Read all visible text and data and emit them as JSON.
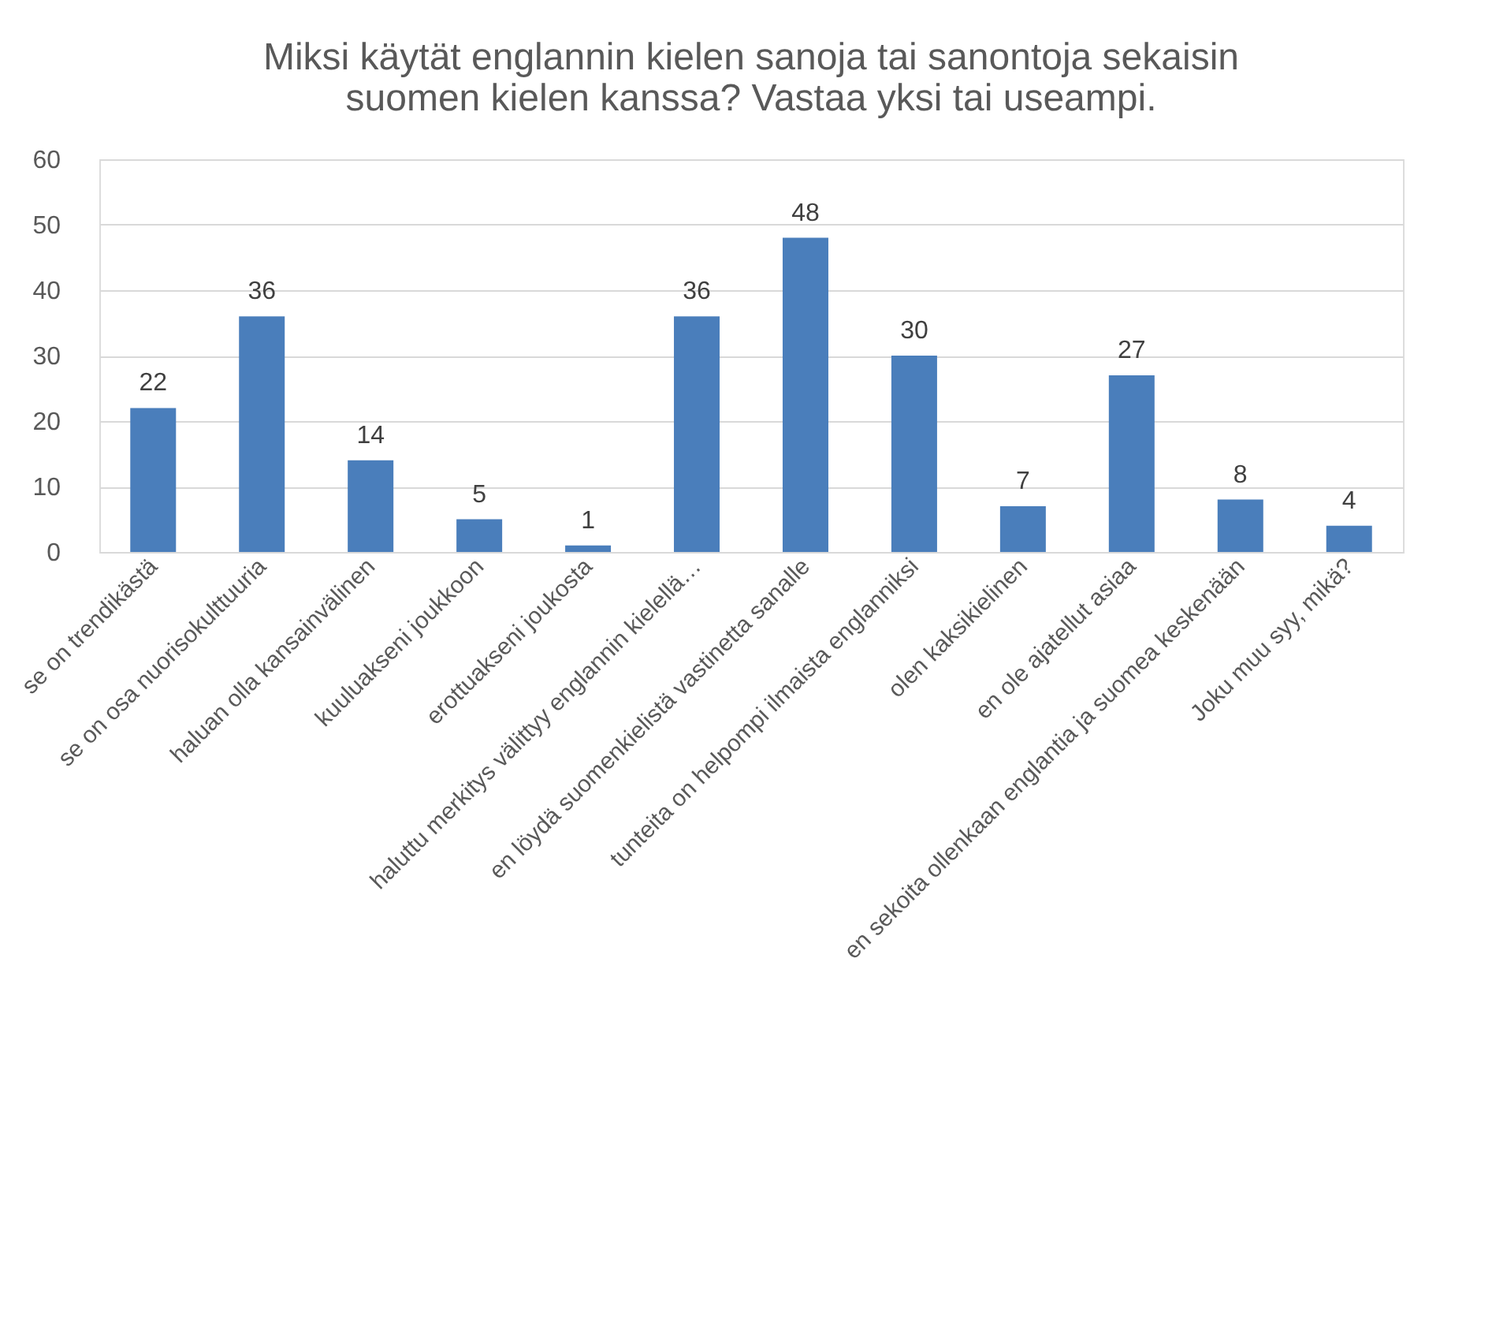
{
  "chart_data": {
    "type": "bar",
    "title": "Miksi käytät englannin kielen sanoja tai sanontoja sekaisin suomen kielen kanssa? Vastaa yksi tai useampi.",
    "categories": [
      "se on trendikästä",
      "se on osa nuorisokulttuuria",
      "haluan olla kansainvälinen",
      "kuuluakseni joukkoon",
      "erottuakseni joukosta",
      "haluttu merkitys välittyy englannin kielellä…",
      "en löydä suomenkielistä vastinetta sanalle",
      "tunteita on helpompi ilmaista englanniksi",
      "olen kaksikielinen",
      "en ole ajatellut asiaa",
      "en sekoita ollenkaan englantia ja suomea keskenään",
      "Joku muu syy, mikä?"
    ],
    "values": [
      22,
      36,
      14,
      5,
      1,
      36,
      48,
      30,
      7,
      27,
      8,
      4
    ],
    "color": "#4a7ebb",
    "ylim": [
      0,
      60
    ],
    "yticks": [
      0,
      10,
      20,
      30,
      40,
      50,
      60
    ],
    "grid": "y",
    "data_labels": true
  }
}
